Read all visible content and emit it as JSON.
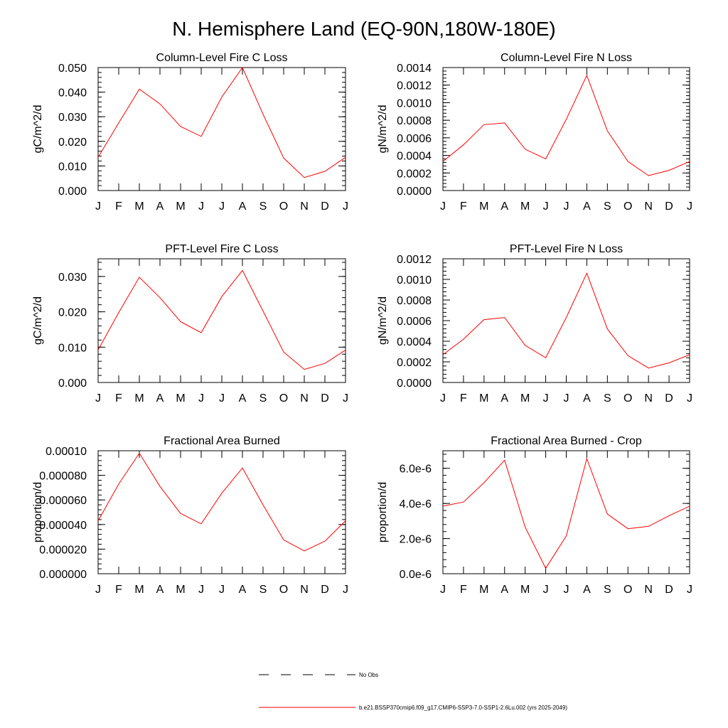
{
  "figure": {
    "title": "N. Hemisphere Land (EQ-90N,180W-180E)",
    "legend": [
      {
        "label": "No Obs",
        "style": "dashed",
        "color": "#000000"
      },
      {
        "label": "b.e21.BSSP370cmip6.f09_g17.CMIP6-SSP3-7.0-SSP1-2.6Lu.002 (yrs 2025-2049)",
        "style": "solid",
        "color": "#ff0000"
      }
    ],
    "line_color": "#ff0000"
  },
  "chart_data": [
    {
      "type": "line",
      "title": "Column-Level Fire C Loss",
      "ylabel": "gC/m^2/d",
      "categories": [
        "J",
        "F",
        "M",
        "A",
        "M",
        "J",
        "J",
        "A",
        "S",
        "O",
        "N",
        "D",
        "J"
      ],
      "ylim": [
        0,
        0.05
      ],
      "yticks": [
        0,
        0.01,
        0.02,
        0.03,
        0.04,
        0.05
      ],
      "ytick_labels": [
        "0.000",
        "0.010",
        "0.020",
        "0.030",
        "0.040",
        "0.050"
      ],
      "series": [
        {
          "values": [
            0.0135,
            0.0275,
            0.0412,
            0.0352,
            0.026,
            0.022,
            0.038,
            0.05,
            0.031,
            0.0132,
            0.0053,
            0.0078,
            0.0135
          ]
        }
      ]
    },
    {
      "type": "line",
      "title": "Column-Level Fire N Loss",
      "ylabel": "gN/m^2/d",
      "categories": [
        "J",
        "F",
        "M",
        "A",
        "M",
        "J",
        "J",
        "A",
        "S",
        "O",
        "N",
        "D",
        "J"
      ],
      "ylim": [
        0,
        0.0014
      ],
      "yticks": [
        0,
        0.0002,
        0.0004,
        0.0006,
        0.0008,
        0.001,
        0.0012,
        0.0014
      ],
      "ytick_labels": [
        "0.0000",
        "0.0002",
        "0.0004",
        "0.0006",
        "0.0008",
        "0.0010",
        "0.0012",
        "0.0014"
      ],
      "series": [
        {
          "values": [
            0.00033,
            0.00052,
            0.00075,
            0.00077,
            0.00047,
            0.00036,
            0.00081,
            0.00131,
            0.00068,
            0.00033,
            0.00017,
            0.00023,
            0.00033
          ]
        }
      ]
    },
    {
      "type": "line",
      "title": "PFT-Level Fire C Loss",
      "ylabel": "gC/m^2/d",
      "categories": [
        "J",
        "F",
        "M",
        "A",
        "M",
        "J",
        "J",
        "A",
        "S",
        "O",
        "N",
        "D",
        "J"
      ],
      "ylim": [
        0,
        0.035
      ],
      "yticks": [
        0,
        0.01,
        0.02,
        0.03
      ],
      "ytick_labels": [
        "0.000",
        "0.010",
        "0.020",
        "0.030"
      ],
      "series": [
        {
          "values": [
            0.0092,
            0.0198,
            0.0298,
            0.024,
            0.0172,
            0.0141,
            0.0243,
            0.0317,
            0.0202,
            0.0086,
            0.0037,
            0.0054,
            0.0092
          ]
        }
      ]
    },
    {
      "type": "line",
      "title": "PFT-Level Fire N Loss",
      "ylabel": "gN/m^2/d",
      "categories": [
        "J",
        "F",
        "M",
        "A",
        "M",
        "J",
        "J",
        "A",
        "S",
        "O",
        "N",
        "D",
        "J"
      ],
      "ylim": [
        0,
        0.0012
      ],
      "yticks": [
        0,
        0.0002,
        0.0004,
        0.0006,
        0.0008,
        0.001,
        0.0012
      ],
      "ytick_labels": [
        "0.0000",
        "0.0002",
        "0.0004",
        "0.0006",
        "0.0008",
        "0.0010",
        "0.0012"
      ],
      "series": [
        {
          "values": [
            0.00027,
            0.00042,
            0.00061,
            0.00063,
            0.00036,
            0.00024,
            0.00063,
            0.00106,
            0.00052,
            0.00026,
            0.00014,
            0.00019,
            0.00027
          ]
        }
      ]
    },
    {
      "type": "line",
      "title": "Fractional Area Burned",
      "ylabel": "proportion/d",
      "categories": [
        "J",
        "F",
        "M",
        "A",
        "M",
        "J",
        "J",
        "A",
        "S",
        "O",
        "N",
        "D",
        "J"
      ],
      "ylim": [
        0,
        0.0001
      ],
      "yticks": [
        0,
        2e-05,
        4e-05,
        6e-05,
        8e-05,
        0.0001
      ],
      "ytick_labels": [
        "0.000000",
        "0.000020",
        "0.000040",
        "0.000060",
        "0.000080",
        "0.00010"
      ],
      "series": [
        {
          "values": [
            4.3e-05,
            7.3e-05,
            9.8e-05,
            7.1e-05,
            4.9e-05,
            4.05e-05,
            6.55e-05,
            8.6e-05,
            5.6e-05,
            2.75e-05,
            1.85e-05,
            2.65e-05,
            4.3e-05
          ]
        }
      ]
    },
    {
      "type": "line",
      "title": "Fractional Area Burned - Crop",
      "ylabel": "proportion/d",
      "categories": [
        "J",
        "F",
        "M",
        "A",
        "M",
        "J",
        "J",
        "A",
        "S",
        "O",
        "N",
        "D",
        "J"
      ],
      "ylim": [
        0,
        7e-06
      ],
      "yticks": [
        0,
        2e-06,
        4e-06,
        6e-06
      ],
      "ytick_labels": [
        "0.0e-6",
        "2.0e-6",
        "4.0e-6",
        "6.0e-6"
      ],
      "series": [
        {
          "values": [
            3.85e-06,
            4.08e-06,
            5.18e-06,
            6.46e-06,
            2.65e-06,
            3.1e-07,
            2.15e-06,
            6.55e-06,
            3.4e-06,
            2.56e-06,
            2.7e-06,
            3.3e-06,
            3.85e-06
          ]
        }
      ]
    }
  ]
}
